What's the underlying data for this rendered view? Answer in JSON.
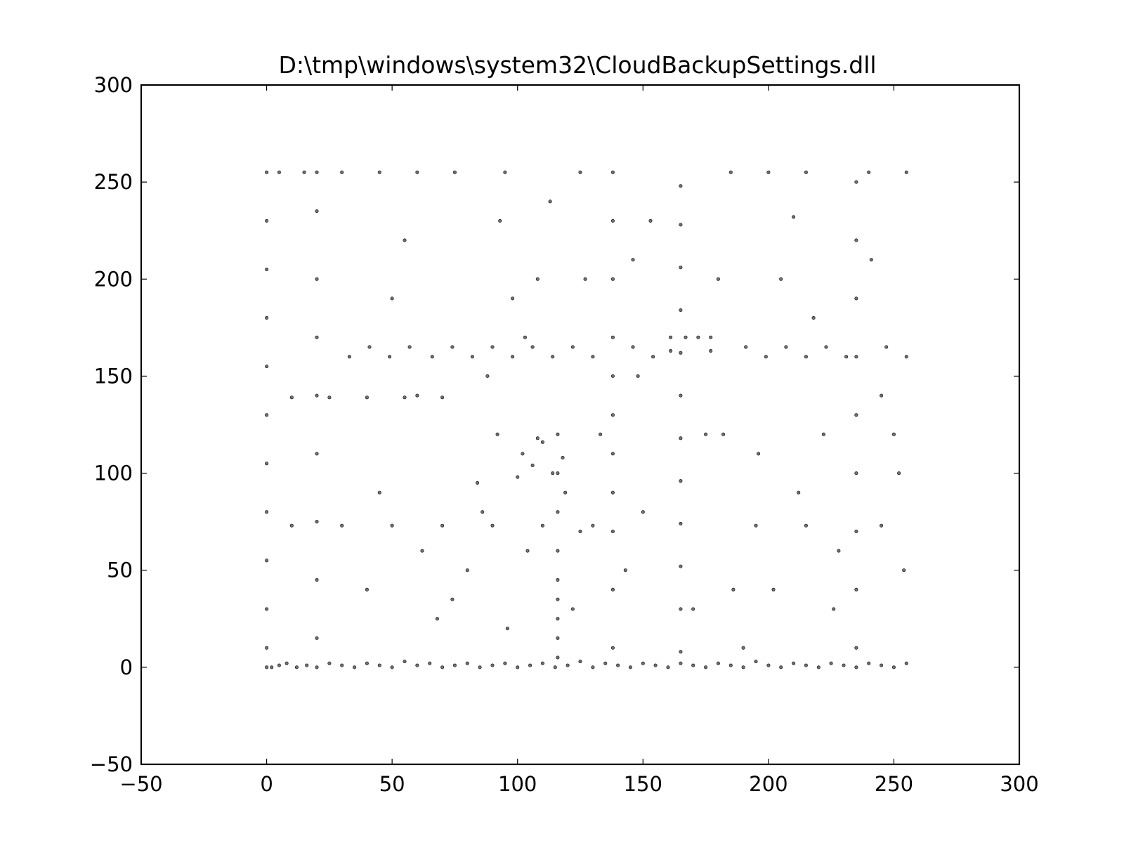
{
  "chart_data": {
    "type": "scatter",
    "title": "D:\\tmp\\windows\\system32\\CloudBackupSettings.dll",
    "xlabel": "",
    "ylabel": "",
    "xlim": [
      -50,
      300
    ],
    "ylim": [
      -50,
      300
    ],
    "xticks": [
      -50,
      0,
      50,
      100,
      150,
      200,
      250,
      300
    ],
    "yticks": [
      -50,
      0,
      50,
      100,
      150,
      200,
      250,
      300
    ],
    "xtick_labels": [
      "−50",
      "0",
      "50",
      "100",
      "150",
      "200",
      "250",
      "300"
    ],
    "ytick_labels": [
      "−50",
      "0",
      "50",
      "100",
      "150",
      "200",
      "250",
      "300"
    ],
    "grid": false,
    "point_color": "#000000",
    "series": [
      {
        "points": [
          [
            0,
            0
          ],
          [
            2,
            0
          ],
          [
            5,
            1
          ],
          [
            8,
            2
          ],
          [
            12,
            0
          ],
          [
            16,
            1
          ],
          [
            20,
            0
          ],
          [
            25,
            2
          ],
          [
            30,
            1
          ],
          [
            35,
            0
          ],
          [
            40,
            2
          ],
          [
            45,
            1
          ],
          [
            50,
            0
          ],
          [
            55,
            3
          ],
          [
            60,
            1
          ],
          [
            65,
            2
          ],
          [
            70,
            0
          ],
          [
            75,
            1
          ],
          [
            80,
            2
          ],
          [
            85,
            0
          ],
          [
            90,
            1
          ],
          [
            95,
            2
          ],
          [
            100,
            0
          ],
          [
            105,
            1
          ],
          [
            110,
            2
          ],
          [
            115,
            0
          ],
          [
            120,
            1
          ],
          [
            125,
            3
          ],
          [
            130,
            0
          ],
          [
            135,
            2
          ],
          [
            140,
            1
          ],
          [
            145,
            0
          ],
          [
            150,
            2
          ],
          [
            155,
            1
          ],
          [
            160,
            0
          ],
          [
            165,
            2
          ],
          [
            170,
            1
          ],
          [
            175,
            0
          ],
          [
            180,
            2
          ],
          [
            185,
            1
          ],
          [
            190,
            0
          ],
          [
            195,
            3
          ],
          [
            200,
            1
          ],
          [
            205,
            0
          ],
          [
            210,
            2
          ],
          [
            215,
            1
          ],
          [
            220,
            0
          ],
          [
            225,
            2
          ],
          [
            230,
            1
          ],
          [
            235,
            0
          ],
          [
            240,
            2
          ],
          [
            245,
            1
          ],
          [
            250,
            0
          ],
          [
            255,
            2
          ],
          [
            0,
            10
          ],
          [
            0,
            30
          ],
          [
            0,
            55
          ],
          [
            0,
            80
          ],
          [
            0,
            105
          ],
          [
            0,
            130
          ],
          [
            0,
            155
          ],
          [
            0,
            180
          ],
          [
            0,
            205
          ],
          [
            0,
            230
          ],
          [
            0,
            255
          ],
          [
            20,
            15
          ],
          [
            20,
            45
          ],
          [
            20,
            75
          ],
          [
            20,
            110
          ],
          [
            20,
            140
          ],
          [
            20,
            170
          ],
          [
            20,
            200
          ],
          [
            20,
            235
          ],
          [
            20,
            255
          ],
          [
            116,
            5
          ],
          [
            116,
            15
          ],
          [
            116,
            25
          ],
          [
            116,
            35
          ],
          [
            116,
            45
          ],
          [
            116,
            60
          ],
          [
            116,
            80
          ],
          [
            116,
            100
          ],
          [
            116,
            120
          ],
          [
            138,
            10
          ],
          [
            138,
            40
          ],
          [
            138,
            70
          ],
          [
            138,
            90
          ],
          [
            138,
            110
          ],
          [
            138,
            130
          ],
          [
            138,
            150
          ],
          [
            138,
            170
          ],
          [
            138,
            200
          ],
          [
            138,
            230
          ],
          [
            138,
            255
          ],
          [
            235,
            10
          ],
          [
            235,
            40
          ],
          [
            235,
            70
          ],
          [
            235,
            100
          ],
          [
            235,
            130
          ],
          [
            235,
            160
          ],
          [
            235,
            190
          ],
          [
            235,
            220
          ],
          [
            235,
            250
          ],
          [
            10,
            73
          ],
          [
            30,
            73
          ],
          [
            50,
            73
          ],
          [
            70,
            73
          ],
          [
            90,
            73
          ],
          [
            110,
            73
          ],
          [
            130,
            73
          ],
          [
            195,
            73
          ],
          [
            215,
            73
          ],
          [
            245,
            73
          ],
          [
            10,
            139
          ],
          [
            25,
            139
          ],
          [
            40,
            139
          ],
          [
            55,
            139
          ],
          [
            70,
            139
          ],
          [
            5,
            255
          ],
          [
            15,
            255
          ],
          [
            30,
            255
          ],
          [
            45,
            255
          ],
          [
            60,
            255
          ],
          [
            75,
            255
          ],
          [
            95,
            255
          ],
          [
            125,
            255
          ],
          [
            185,
            255
          ],
          [
            200,
            255
          ],
          [
            215,
            255
          ],
          [
            240,
            255
          ],
          [
            255,
            255
          ],
          [
            161,
            170
          ],
          [
            167,
            170
          ],
          [
            172,
            170
          ],
          [
            177,
            170
          ],
          [
            161,
            163
          ],
          [
            177,
            163
          ],
          [
            102,
            110
          ],
          [
            106,
            104
          ],
          [
            110,
            116
          ],
          [
            114,
            100
          ],
          [
            118,
            108
          ],
          [
            100,
            98
          ],
          [
            108,
            118
          ],
          [
            33,
            160
          ],
          [
            41,
            165
          ],
          [
            49,
            160
          ],
          [
            57,
            165
          ],
          [
            66,
            160
          ],
          [
            74,
            165
          ],
          [
            82,
            160
          ],
          [
            90,
            165
          ],
          [
            98,
            160
          ],
          [
            106,
            165
          ],
          [
            114,
            160
          ],
          [
            122,
            165
          ],
          [
            130,
            160
          ],
          [
            146,
            165
          ],
          [
            154,
            160
          ],
          [
            191,
            165
          ],
          [
            199,
            160
          ],
          [
            207,
            165
          ],
          [
            215,
            160
          ],
          [
            223,
            165
          ],
          [
            231,
            160
          ],
          [
            247,
            165
          ],
          [
            255,
            160
          ],
          [
            165,
            8
          ],
          [
            165,
            30
          ],
          [
            165,
            52
          ],
          [
            165,
            74
          ],
          [
            165,
            96
          ],
          [
            165,
            118
          ],
          [
            165,
            140
          ],
          [
            165,
            162
          ],
          [
            165,
            184
          ],
          [
            165,
            206
          ],
          [
            165,
            228
          ],
          [
            165,
            248
          ],
          [
            68,
            25
          ],
          [
            74,
            35
          ],
          [
            80,
            50
          ],
          [
            86,
            80
          ],
          [
            92,
            120
          ],
          [
            98,
            190
          ],
          [
            104,
            60
          ],
          [
            122,
            30
          ],
          [
            125,
            70
          ],
          [
            127,
            200
          ],
          [
            146,
            210
          ],
          [
            150,
            80
          ],
          [
            182,
            120
          ],
          [
            186,
            40
          ],
          [
            205,
            200
          ],
          [
            210,
            232
          ],
          [
            222,
            120
          ],
          [
            228,
            60
          ],
          [
            245,
            140
          ],
          [
            252,
            100
          ],
          [
            40,
            40
          ],
          [
            45,
            90
          ],
          [
            50,
            190
          ],
          [
            55,
            220
          ],
          [
            60,
            140
          ],
          [
            62,
            60
          ],
          [
            84,
            95
          ],
          [
            88,
            150
          ],
          [
            93,
            230
          ],
          [
            96,
            20
          ],
          [
            103,
            170
          ],
          [
            108,
            200
          ],
          [
            113,
            240
          ],
          [
            119,
            90
          ],
          [
            133,
            120
          ],
          [
            143,
            50
          ],
          [
            148,
            150
          ],
          [
            153,
            230
          ],
          [
            170,
            30
          ],
          [
            175,
            120
          ],
          [
            180,
            200
          ],
          [
            190,
            10
          ],
          [
            196,
            110
          ],
          [
            202,
            40
          ],
          [
            212,
            90
          ],
          [
            218,
            180
          ],
          [
            226,
            30
          ],
          [
            241,
            210
          ],
          [
            250,
            120
          ],
          [
            254,
            50
          ]
        ]
      }
    ]
  }
}
